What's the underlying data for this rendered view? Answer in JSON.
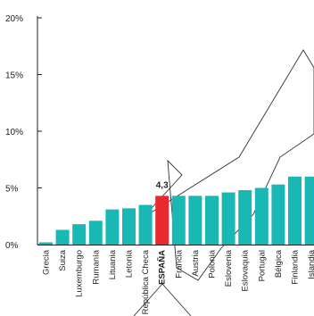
{
  "chart_data": {
    "type": "bar",
    "categories": [
      "Grecia",
      "Suiza",
      "Luxemburgo",
      "Rumanía",
      "Lituania",
      "Letonia",
      "República Checa",
      "ESPAÑA",
      "Francia",
      "Austria",
      "Polonia",
      "Eslovenia",
      "Eslovaquia",
      "Portugal",
      "Bélgica",
      "Finlandia",
      "Islandia"
    ],
    "values": [
      0.2,
      1.3,
      1.8,
      2.1,
      3.1,
      3.2,
      3.5,
      4.3,
      4.3,
      4.3,
      4.3,
      4.6,
      4.8,
      5.0,
      5.3,
      6.0,
      6.0
    ],
    "highlight": "ESPAÑA",
    "data_labels": [
      {
        "category": "ESPAÑA",
        "text": "4,3"
      }
    ],
    "ylim": [
      0,
      20
    ],
    "yticks": [
      0,
      5,
      10,
      15,
      20
    ],
    "ytick_labels": [
      "0%",
      "5%",
      "10%",
      "15%",
      "20%"
    ],
    "title": "",
    "xlabel": "",
    "ylabel": "",
    "grid": false,
    "colors": {
      "bar": "#1ab8b4",
      "highlight": "#e9292e",
      "axis": "#222222",
      "watermark": "#333333"
    }
  }
}
